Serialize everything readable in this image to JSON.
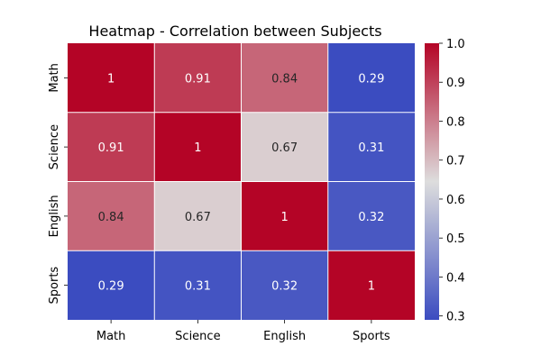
{
  "chart_data": {
    "type": "heatmap",
    "title": "Heatmap - Correlation between Subjects",
    "xlabel": "",
    "ylabel": "",
    "x_categories": [
      "Math",
      "Science",
      "English",
      "Sports"
    ],
    "y_categories": [
      "Math",
      "Science",
      "English",
      "Sports"
    ],
    "values": [
      [
        1,
        0.91,
        0.84,
        0.29
      ],
      [
        0.91,
        1,
        0.67,
        0.31
      ],
      [
        0.84,
        0.67,
        1,
        0.32
      ],
      [
        0.29,
        0.31,
        0.32,
        1
      ]
    ],
    "value_labels": [
      [
        "1",
        "0.91",
        "0.84",
        "0.29"
      ],
      [
        "0.91",
        "1",
        "0.67",
        "0.31"
      ],
      [
        "0.84",
        "0.67",
        "1",
        "0.32"
      ],
      [
        "0.29",
        "0.31",
        "0.32",
        "1"
      ]
    ],
    "colormap": "coolwarm",
    "colormap_stops": [
      "#3b4cc0",
      "#dddddd",
      "#b40426"
    ],
    "vmin": 0.29,
    "vmax": 1,
    "colorbar_ticks": [
      "0.3",
      "0.4",
      "0.5",
      "0.6",
      "0.7",
      "0.8",
      "0.9",
      "1.0"
    ],
    "colorbar_tick_values": [
      0.3,
      0.4,
      0.5,
      0.6,
      0.7,
      0.8,
      0.9,
      1.0
    ],
    "grid_lines": true,
    "grid_color": "#ffffff"
  }
}
